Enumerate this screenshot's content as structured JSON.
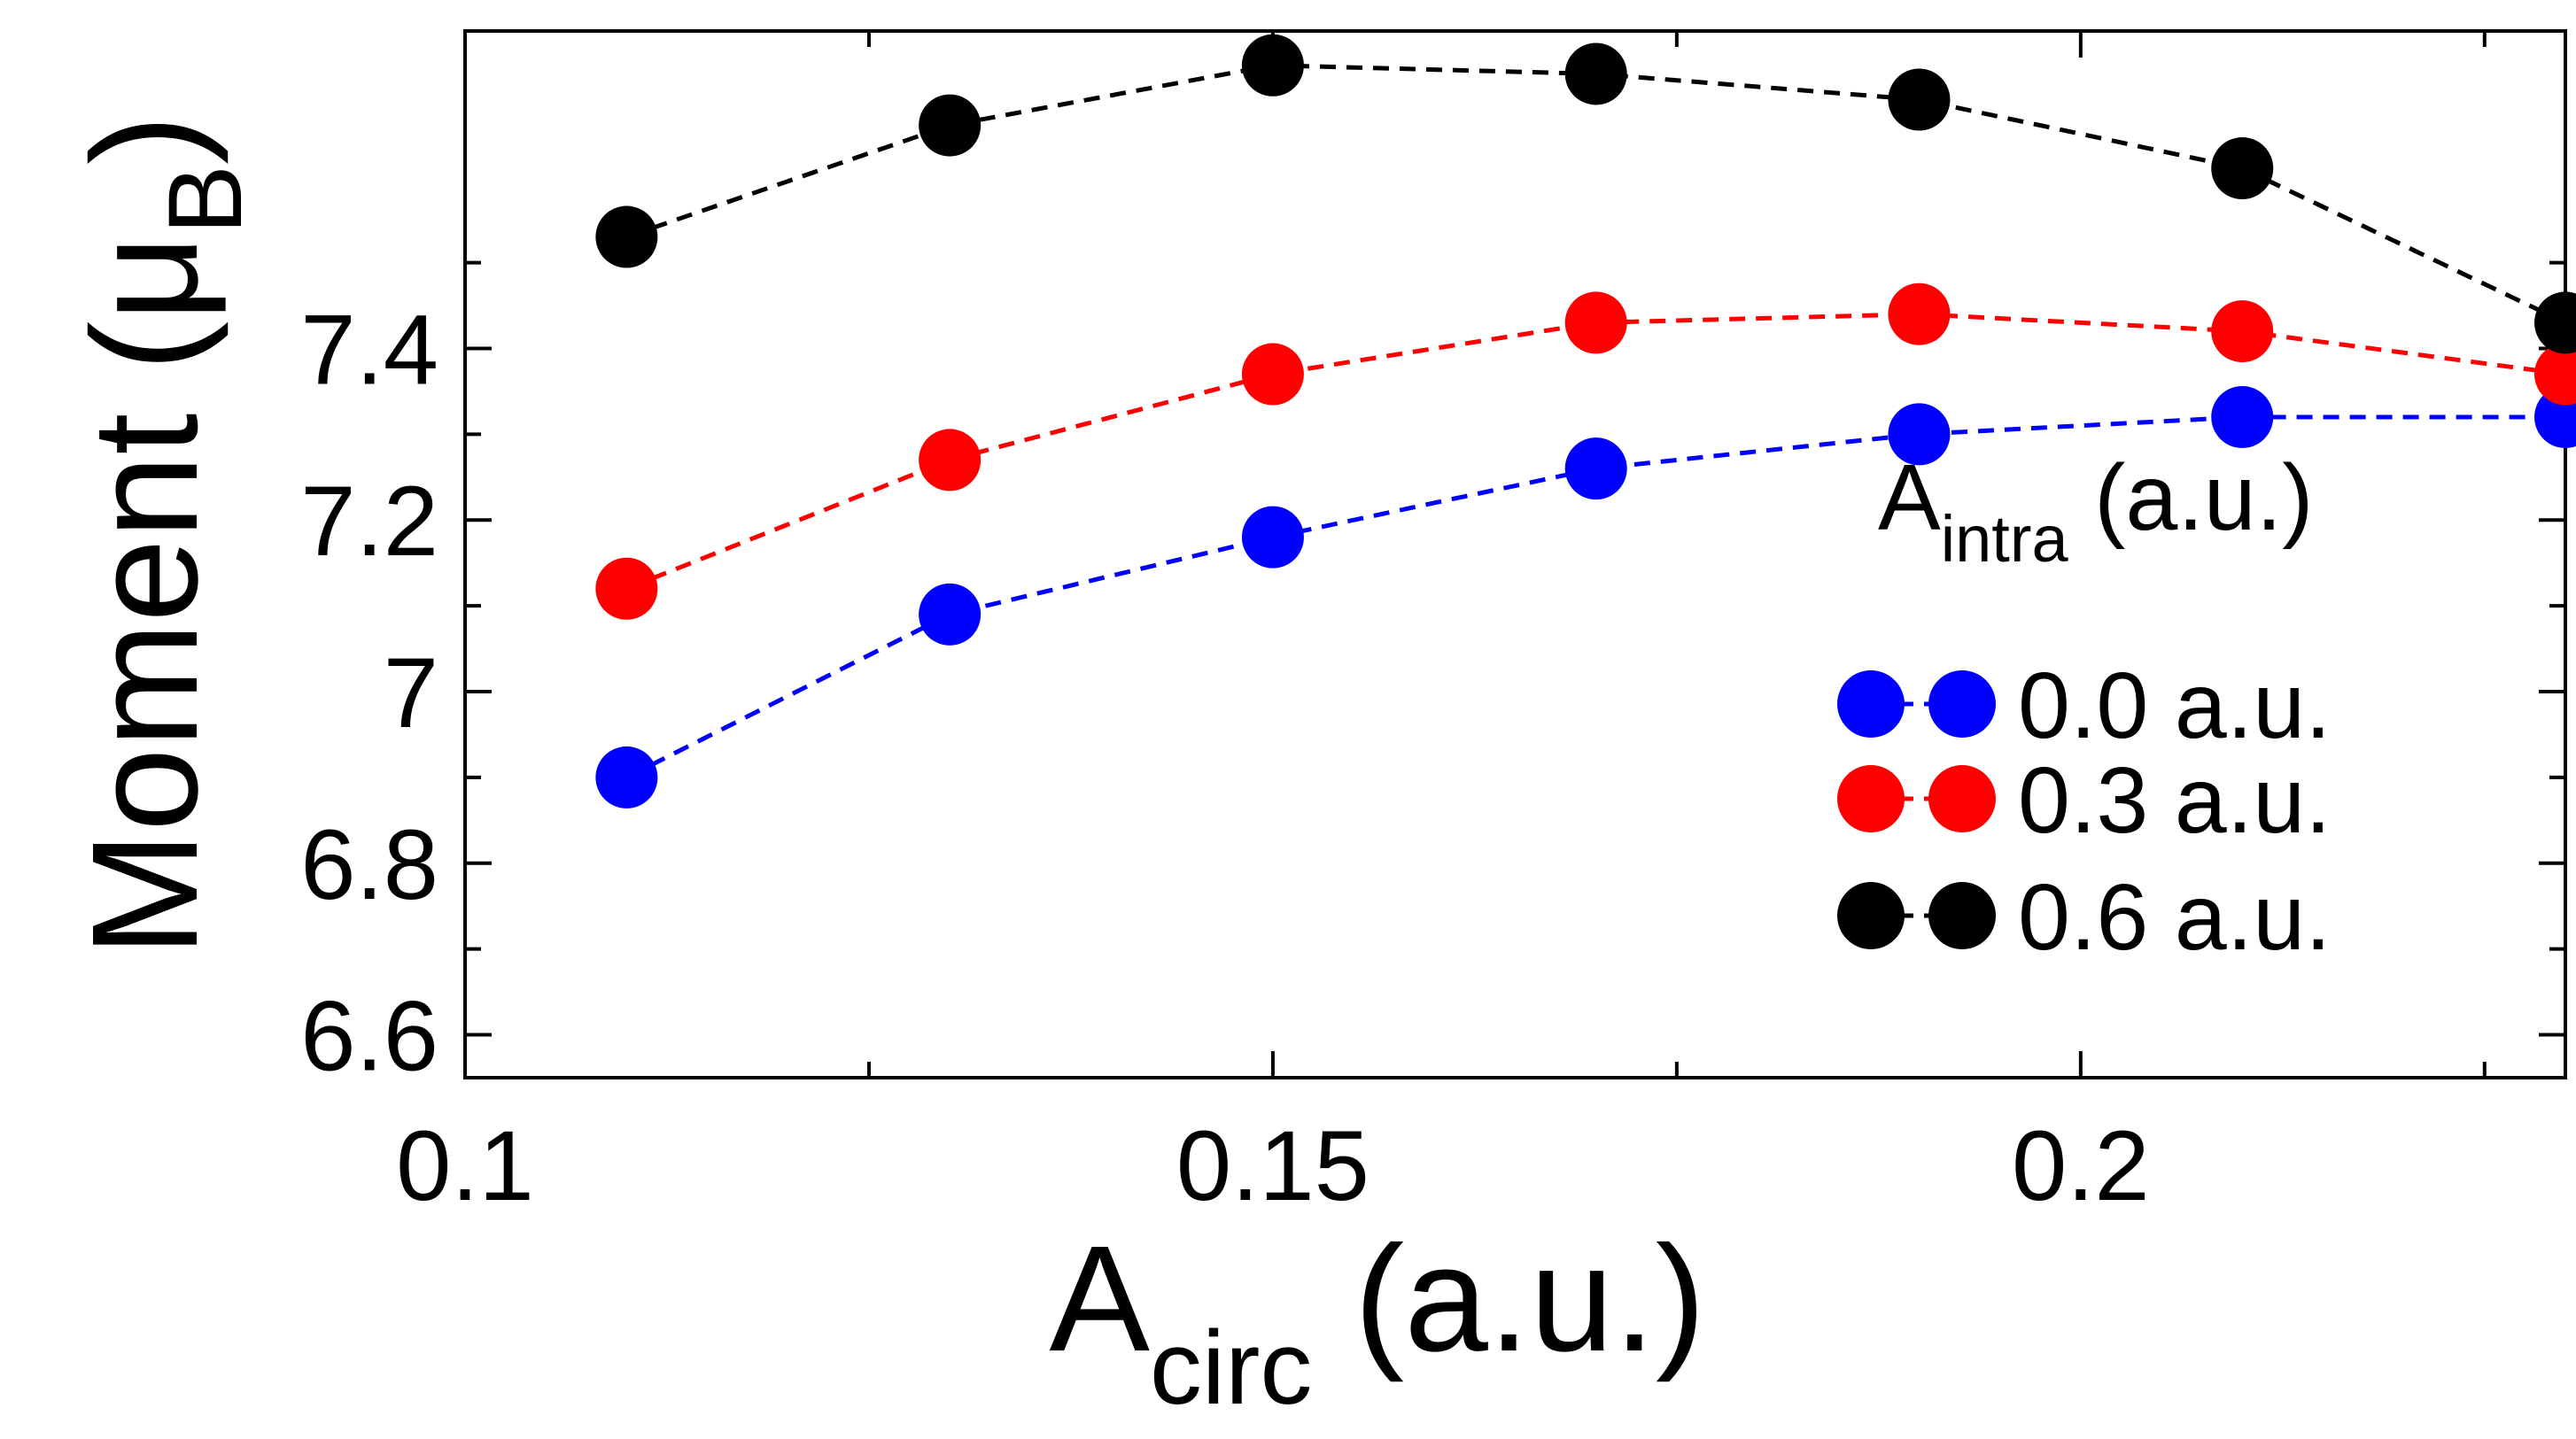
{
  "chart_data": {
    "type": "line",
    "xlabel": {
      "main": "A",
      "sub": "circ",
      "suffix": " (a.u.)"
    },
    "ylabel": {
      "main": "Moment (",
      "mu": "μ",
      "sub": "B",
      "suffix": ")"
    },
    "xlim": [
      0.1,
      0.23
    ],
    "ylim": [
      6.55,
      7.77
    ],
    "x_ticks": [
      0.1,
      0.15,
      0.2
    ],
    "x_tick_labels": [
      "0.1",
      "0.15",
      "0.2"
    ],
    "x_minor_ticks": [
      0.125,
      0.175,
      0.225
    ],
    "y_ticks": [
      6.6,
      6.8,
      7.0,
      7.2,
      7.4
    ],
    "y_tick_labels": [
      "6.6",
      "6.8",
      "7",
      "7.2",
      "7.4"
    ],
    "y_minor_ticks": [
      6.7,
      6.9,
      7.1,
      7.3,
      7.5
    ],
    "grid": false,
    "legend": {
      "title_main": "A",
      "title_sub": "intra",
      "title_suffix": " (a.u.)",
      "placement": "right"
    },
    "x": [
      0.11,
      0.13,
      0.15,
      0.17,
      0.19,
      0.21,
      0.23
    ],
    "series": [
      {
        "name": "0.0 a.u.",
        "color": "#0000ff",
        "values": [
          6.9,
          7.09,
          7.18,
          7.26,
          7.3,
          7.32,
          7.32
        ]
      },
      {
        "name": "0.3 a.u.",
        "color": "#ff0000",
        "values": [
          7.12,
          7.27,
          7.37,
          7.43,
          7.44,
          7.42,
          7.37
        ]
      },
      {
        "name": "0.6 a.u.",
        "color": "#000000",
        "values": [
          7.53,
          7.66,
          7.73,
          7.72,
          7.69,
          7.61,
          7.43
        ]
      }
    ]
  }
}
